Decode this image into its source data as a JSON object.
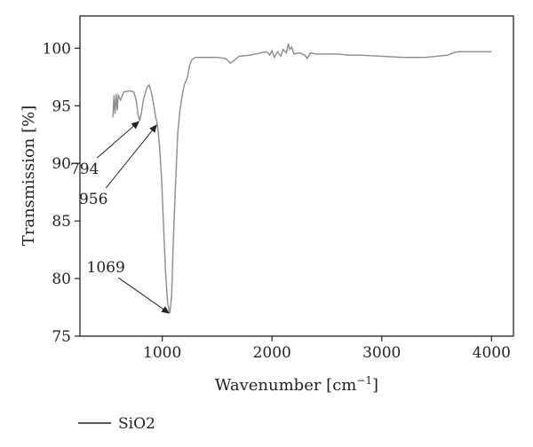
{
  "chart_data": {
    "type": "line",
    "xlabel": "Wavenumber [cm",
    "xlabel_sup": "−1",
    "xlabel_end": "]",
    "ylabel": "Transmission [%]",
    "xlim": [
      250,
      4200
    ],
    "ylim": [
      75,
      102.8
    ],
    "x_ticks": [
      1000,
      2000,
      3000,
      4000
    ],
    "x_tick_labels": [
      "1000",
      "2000",
      "3000",
      "4000"
    ],
    "y_ticks": [
      75,
      80,
      85,
      90,
      95,
      100
    ],
    "y_tick_labels": [
      "75",
      "80",
      "85",
      "90",
      "95",
      "100"
    ],
    "grid": false,
    "legend_position": "bottom-left",
    "series": [
      {
        "name": "SiO2",
        "color": "#8c8c8c",
        "points": [
          [
            550,
            94.0
          ],
          [
            560,
            95.9
          ],
          [
            570,
            94.3
          ],
          [
            580,
            96.0
          ],
          [
            590,
            94.6
          ],
          [
            600,
            95.9
          ],
          [
            620,
            95.5
          ],
          [
            650,
            96.2
          ],
          [
            700,
            96.3
          ],
          [
            740,
            96.2
          ],
          [
            760,
            95.6
          ],
          [
            780,
            94.2
          ],
          [
            794,
            93.7
          ],
          [
            810,
            94.4
          ],
          [
            830,
            95.6
          ],
          [
            860,
            96.6
          ],
          [
            880,
            96.8
          ],
          [
            900,
            96.2
          ],
          [
            920,
            95.2
          ],
          [
            940,
            94.0
          ],
          [
            956,
            93.4
          ],
          [
            975,
            91.5
          ],
          [
            995,
            88.5
          ],
          [
            1010,
            85.0
          ],
          [
            1030,
            80.5
          ],
          [
            1050,
            77.8
          ],
          [
            1069,
            77.0
          ],
          [
            1085,
            78.5
          ],
          [
            1100,
            83.0
          ],
          [
            1120,
            88.0
          ],
          [
            1140,
            92.5
          ],
          [
            1160,
            94.5
          ],
          [
            1180,
            95.8
          ],
          [
            1200,
            96.8
          ],
          [
            1230,
            97.5
          ],
          [
            1250,
            98.5
          ],
          [
            1270,
            99.0
          ],
          [
            1300,
            99.2
          ],
          [
            1400,
            99.2
          ],
          [
            1500,
            99.2
          ],
          [
            1580,
            99.1
          ],
          [
            1620,
            98.7
          ],
          [
            1650,
            98.9
          ],
          [
            1700,
            99.3
          ],
          [
            1800,
            99.4
          ],
          [
            1900,
            99.6
          ],
          [
            1950,
            99.7
          ],
          [
            1980,
            99.4
          ],
          [
            2000,
            99.8
          ],
          [
            2020,
            99.2
          ],
          [
            2050,
            99.7
          ],
          [
            2080,
            99.3
          ],
          [
            2100,
            99.9
          ],
          [
            2130,
            99.6
          ],
          [
            2150,
            100.4
          ],
          [
            2160,
            99.9
          ],
          [
            2180,
            100.1
          ],
          [
            2200,
            99.5
          ],
          [
            2250,
            99.6
          ],
          [
            2300,
            99.4
          ],
          [
            2320,
            99.1
          ],
          [
            2350,
            99.6
          ],
          [
            2400,
            99.5
          ],
          [
            2500,
            99.5
          ],
          [
            2600,
            99.5
          ],
          [
            2700,
            99.4
          ],
          [
            2800,
            99.4
          ],
          [
            3000,
            99.3
          ],
          [
            3200,
            99.2
          ],
          [
            3400,
            99.2
          ],
          [
            3500,
            99.3
          ],
          [
            3600,
            99.4
          ],
          [
            3650,
            99.6
          ],
          [
            3700,
            99.7
          ],
          [
            3800,
            99.7
          ],
          [
            3900,
            99.7
          ],
          [
            4000,
            99.7
          ]
        ]
      }
    ],
    "annotations": [
      {
        "label": "794",
        "x": 794,
        "y": 93.7
      },
      {
        "label": "956",
        "x": 956,
        "y": 93.4
      },
      {
        "label": "1069",
        "x": 1069,
        "y": 77.0
      }
    ]
  }
}
